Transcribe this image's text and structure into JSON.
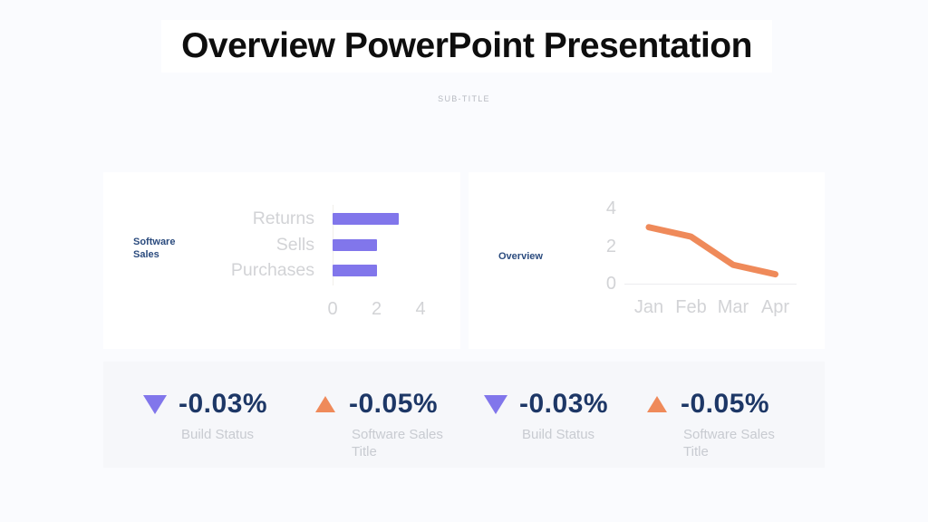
{
  "page": {
    "title": "Overview PowerPoint Presentation",
    "subtitle": "SUB-TITLE"
  },
  "colors": {
    "purple": "#8176eb",
    "orange": "#ef8a5a",
    "navy": "#1d3766",
    "chart_gray": "#d2d3d6",
    "page_bg": "#fafbfe",
    "card_bg": "#ffffff",
    "stats_bg": "#f6f7fa"
  },
  "chart_data": [
    {
      "type": "bar",
      "orientation": "horizontal",
      "title": "Software Sales",
      "categories": [
        "Returns",
        "Sells",
        "Purchases"
      ],
      "values": [
        3,
        2,
        2
      ],
      "xlim": [
        0,
        4
      ],
      "xticks": [
        0,
        2,
        4
      ],
      "bar_color": "#8176eb",
      "grid": false,
      "legend": "none"
    },
    {
      "type": "line",
      "title": "Overview",
      "x": [
        "Jan",
        "Feb",
        "Mar",
        "Apr"
      ],
      "values": [
        3,
        2.5,
        1,
        0.5
      ],
      "ylim": [
        0,
        4
      ],
      "yticks": [
        4,
        2,
        0
      ],
      "line_color": "#ef8a5a",
      "grid": false,
      "legend": "none"
    }
  ],
  "stats": [
    {
      "direction": "down",
      "arrow_color": "#8176eb",
      "value": "-0.03%",
      "label": "Build Status"
    },
    {
      "direction": "up",
      "arrow_color": "#ef8a5a",
      "value": "-0.05%",
      "label": "Software Sales Title"
    },
    {
      "direction": "down",
      "arrow_color": "#8176eb",
      "value": "-0.03%",
      "label": "Build Status"
    },
    {
      "direction": "up",
      "arrow_color": "#ef8a5a",
      "value": "-0.05%",
      "label": "Software Sales Title"
    }
  ]
}
